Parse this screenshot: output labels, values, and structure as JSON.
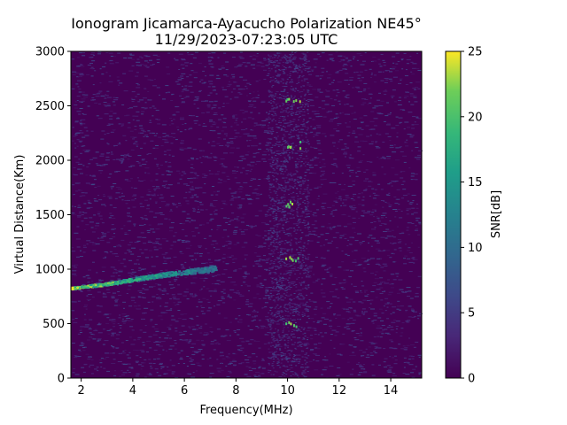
{
  "chart_data": {
    "type": "heatmap",
    "title": "Ionogram Jicamarca-Ayacucho Polarization NE45°",
    "subtitle": "11/29/2023-07:23:05 UTC",
    "xlabel": "Frequency(MHz)",
    "ylabel": "Virtual Distance(Km)",
    "colorbar_label": "SNR[dB]",
    "xlim": [
      1.6,
      15.2
    ],
    "ylim": [
      0,
      3000
    ],
    "clim": [
      0,
      25
    ],
    "colormap": "viridis",
    "x_ticks": [
      2,
      4,
      6,
      8,
      10,
      12,
      14
    ],
    "y_ticks": [
      0,
      500,
      1000,
      1500,
      2000,
      2500,
      3000
    ],
    "colorbar_ticks": [
      0,
      5,
      10,
      15,
      20,
      25
    ],
    "features": [
      {
        "name": "F-layer trace",
        "points": [
          [
            1.6,
            830
          ],
          [
            3.0,
            870
          ],
          [
            4.5,
            930
          ],
          [
            6.0,
            980
          ],
          [
            7.2,
            1010
          ]
        ],
        "snr": 22
      },
      {
        "name": "multi-hop echoes",
        "distances": [
          500,
          1100,
          1600,
          2150,
          2550
        ],
        "frequency": 10.2,
        "snr": 24
      },
      {
        "name": "interference band",
        "frequency_range": [
          9.2,
          10.8
        ],
        "snr": 4
      }
    ]
  }
}
